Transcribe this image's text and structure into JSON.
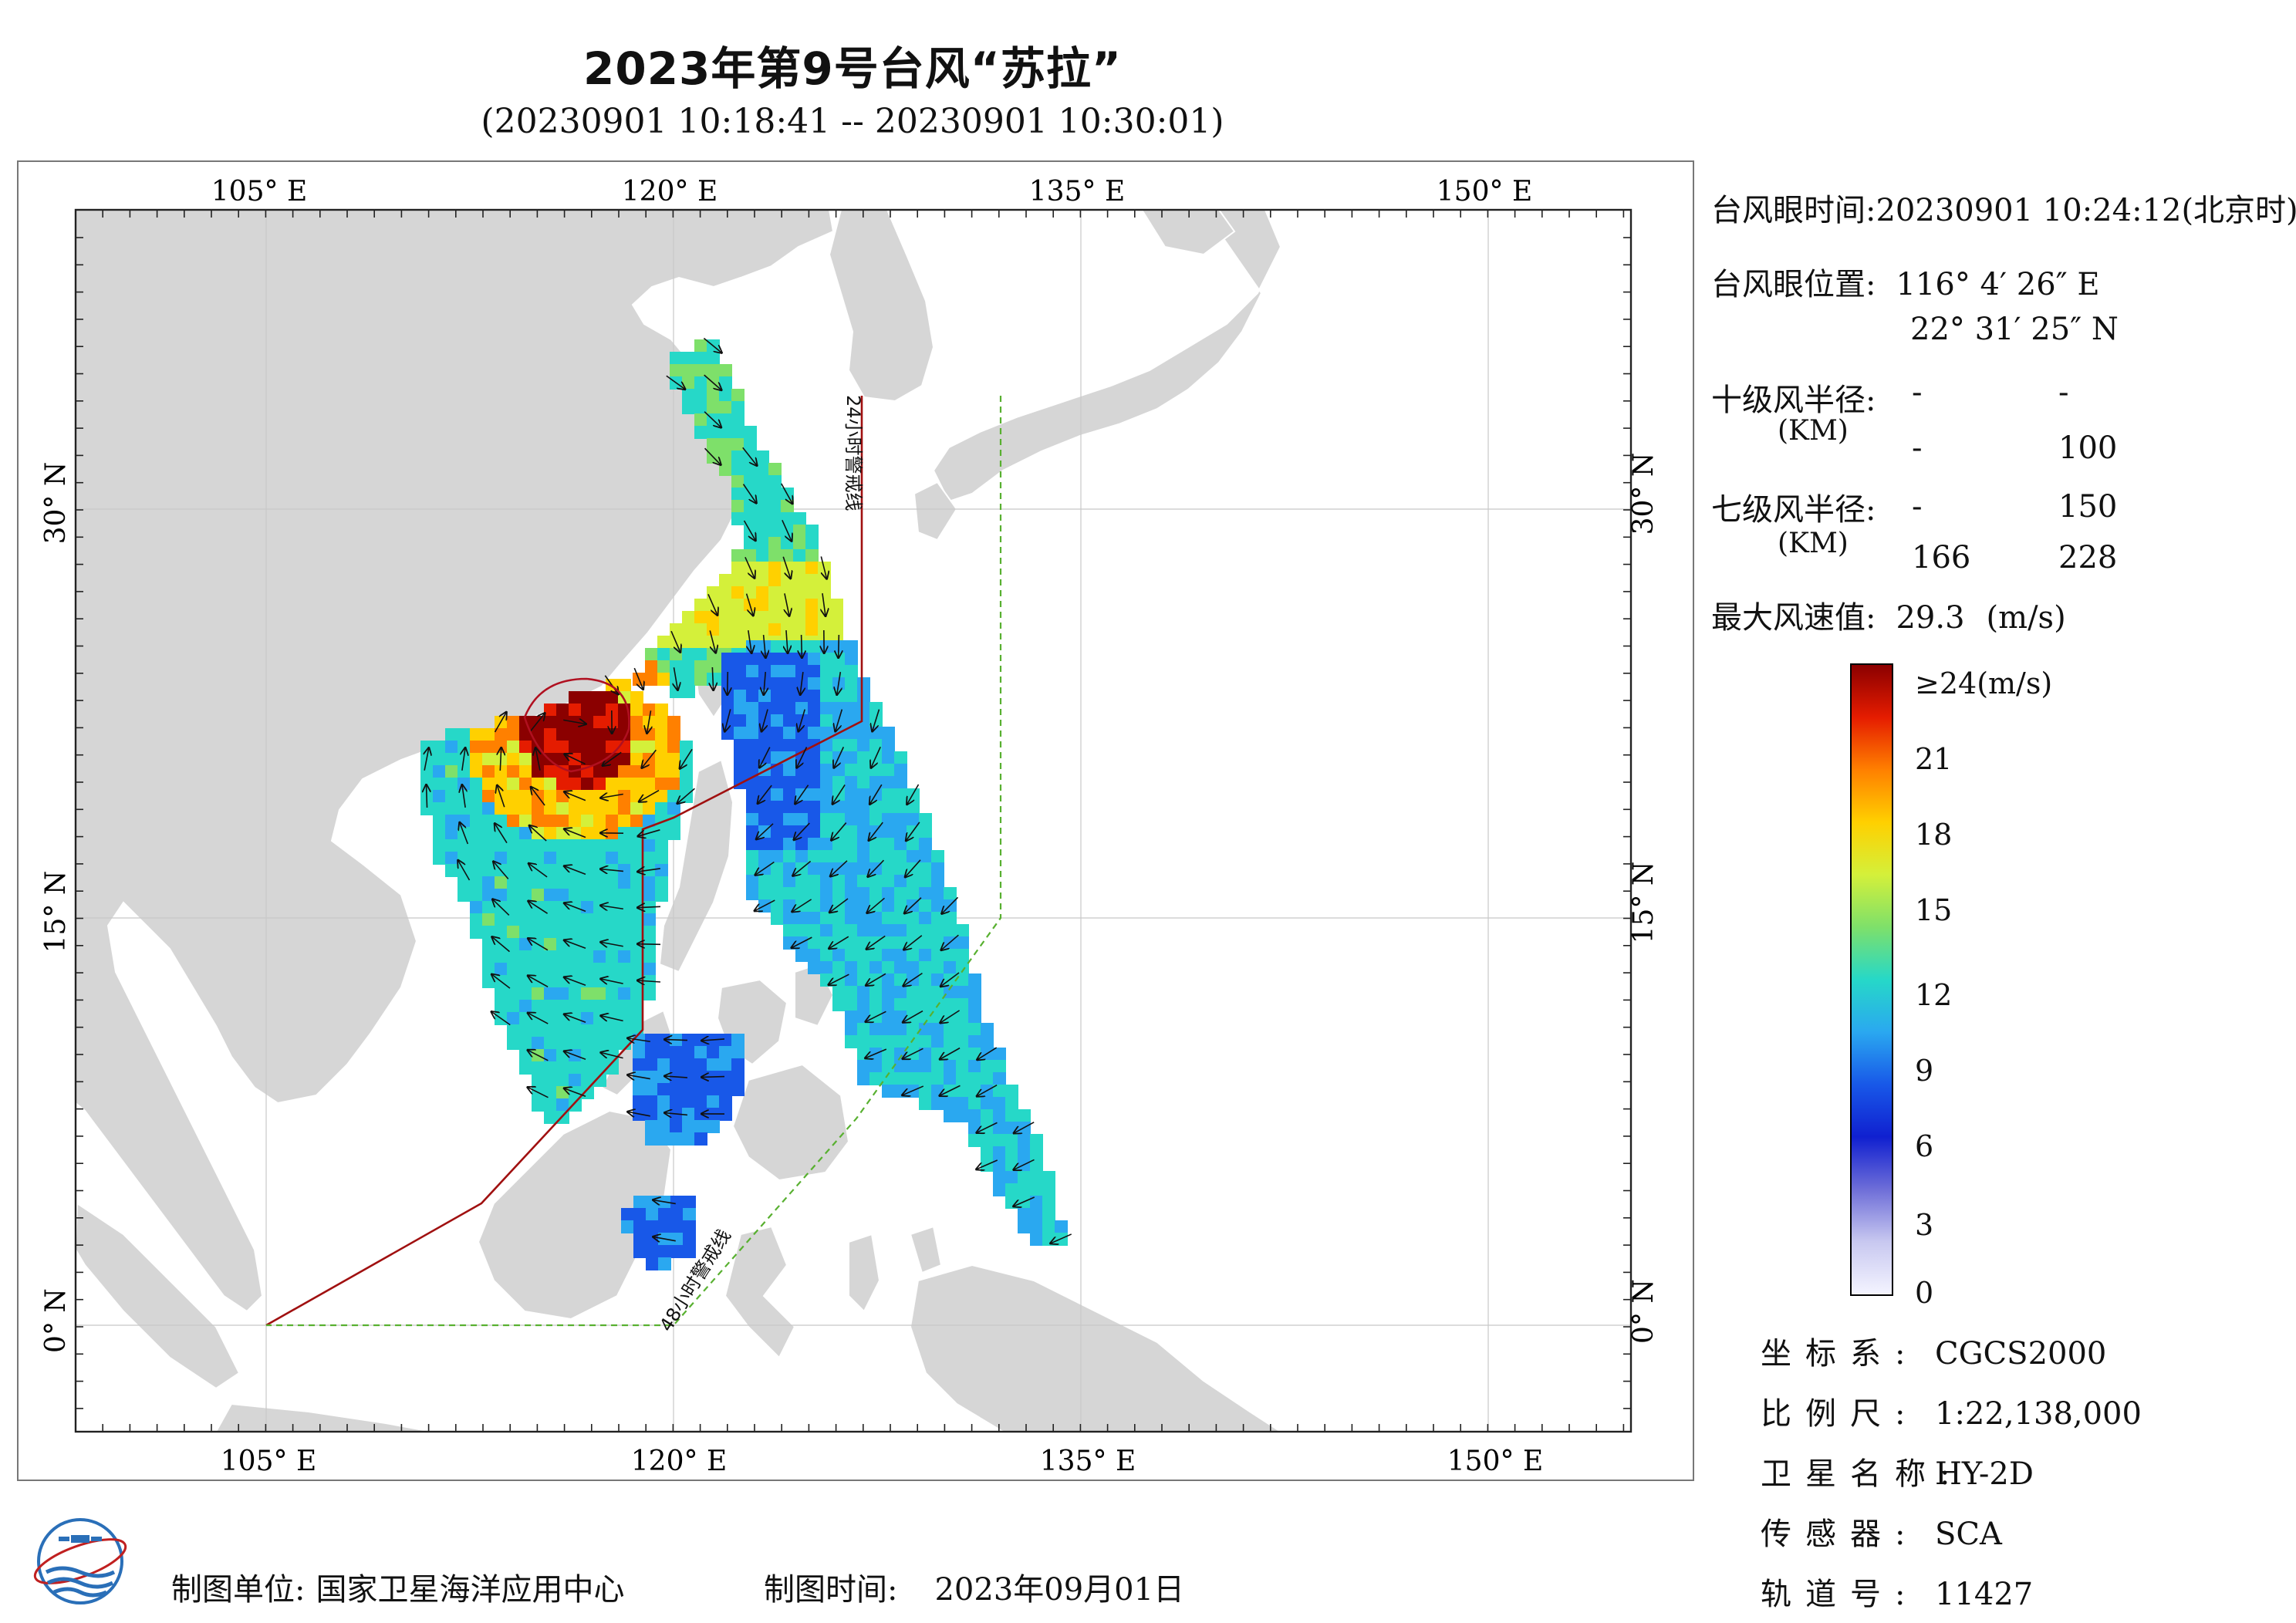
{
  "title": "2023年第9号台风“苏拉”",
  "subtitle": "(20230901 10:18:41 -- 20230901 10:30:01)",
  "axes": {
    "lon_ticks": [
      "105° E",
      "120° E",
      "135° E",
      "150° E"
    ],
    "lat_ticks": [
      "30° N",
      "15° N",
      "0° N"
    ]
  },
  "map_labels": {
    "warning_24h": "24小时警戒线",
    "warning_48h": "48小时警戒线"
  },
  "info": {
    "eye_time_label": "台风眼时间:",
    "eye_time_value": "20230901 10:24:12(北京时)",
    "eye_pos_label": "台风眼位置:",
    "eye_lon": "116° 4′ 26″ E",
    "eye_lat": "22° 31′ 25″ N",
    "r10_label": "十级风半径:",
    "r10_unit": "(KM)",
    "r10_row1_a": "-",
    "r10_row1_b": "-",
    "r10_row2_a": "-",
    "r10_row2_b": "100",
    "r7_label": "七级风半径:",
    "r7_unit": "(KM)",
    "r7_row1_a": "-",
    "r7_row1_b": "150",
    "r7_row2_a": "166",
    "r7_row2_b": "228",
    "max_label": "最大风速值:",
    "max_value": "29.3",
    "max_unit": "(m/s)"
  },
  "colorbar": {
    "ticks": [
      "≥24(m/s)",
      "21",
      "18",
      "15",
      "12",
      "9",
      "6",
      "3",
      "0"
    ],
    "colors": [
      "#8b0000",
      "#e51c00",
      "#ff8000",
      "#ffd000",
      "#d4f03a",
      "#7ee06a",
      "#26d8c8",
      "#2aa8f0",
      "#1858e8",
      "#1020d0",
      "#6e6ed8",
      "#c8c8f0",
      "#f4f4ff"
    ]
  },
  "meta": [
    {
      "key": "坐标系:",
      "value": "CGCS2000"
    },
    {
      "key": "比例尺:",
      "value": "1:22,138,000"
    },
    {
      "key": "卫星名称:",
      "value": "HY-2D"
    },
    {
      "key": "传感器:",
      "value": "SCA"
    },
    {
      "key": "轨道号:",
      "value": "11427"
    }
  ],
  "footer": {
    "unit_label": "制图单位:",
    "unit_value": "国家卫星海洋应用中心",
    "time_label": "制图时间:",
    "time_value": "2023年09月01日"
  }
}
